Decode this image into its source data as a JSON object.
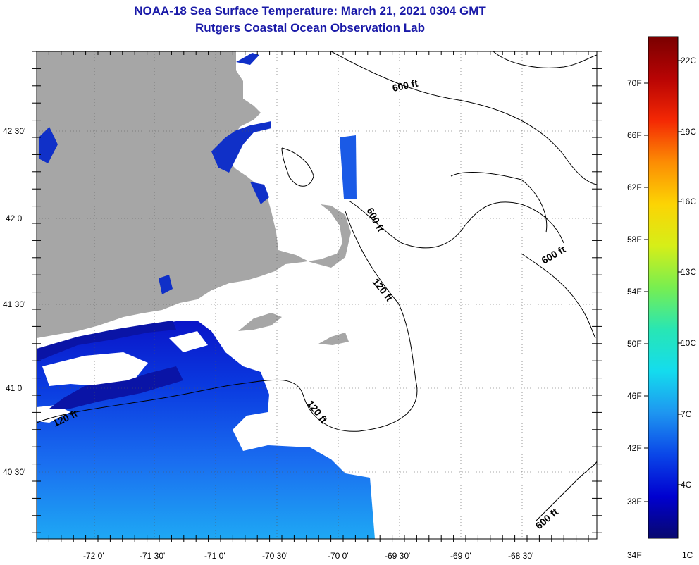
{
  "title": {
    "line1": "NOAA-18 Sea Surface Temperature:  March 21, 2021 0304 GMT",
    "line2": "Rutgers Coastal Ocean Observation Lab"
  },
  "map": {
    "lon_labels": [
      "-72 0'",
      "-71 30'",
      "-71 0'",
      "-70 30'",
      "-70 0'",
      "-69 30'",
      "-69 0'",
      "-68 30'"
    ],
    "lat_labels": [
      "42 30'",
      "42 0'",
      "41 30'",
      "41 0'",
      "40 30'"
    ],
    "contour_labels": [
      "600 ft",
      "600 ft",
      "600 ft",
      "600 ft",
      "120 ft",
      "120 ft",
      "120 ft"
    ],
    "land_color": "#a6a6a6",
    "no_data_color": "#ffffff"
  },
  "colorbar": {
    "fahrenheit_labels": [
      "70F",
      "66F",
      "62F",
      "58F",
      "54F",
      "50F",
      "46F",
      "42F",
      "38F",
      "34F"
    ],
    "celsius_labels": [
      "22C",
      "19C",
      "16C",
      "13C",
      "10C",
      "7C",
      "4C",
      "1C"
    ],
    "stops": [
      "#08086e",
      "#0000d0",
      "#0a46e8",
      "#1e96f0",
      "#14dcee",
      "#28e6b4",
      "#78ee50",
      "#d6ee18",
      "#fcd404",
      "#fc8c04",
      "#f42804",
      "#b80404",
      "#7a0000"
    ]
  }
}
